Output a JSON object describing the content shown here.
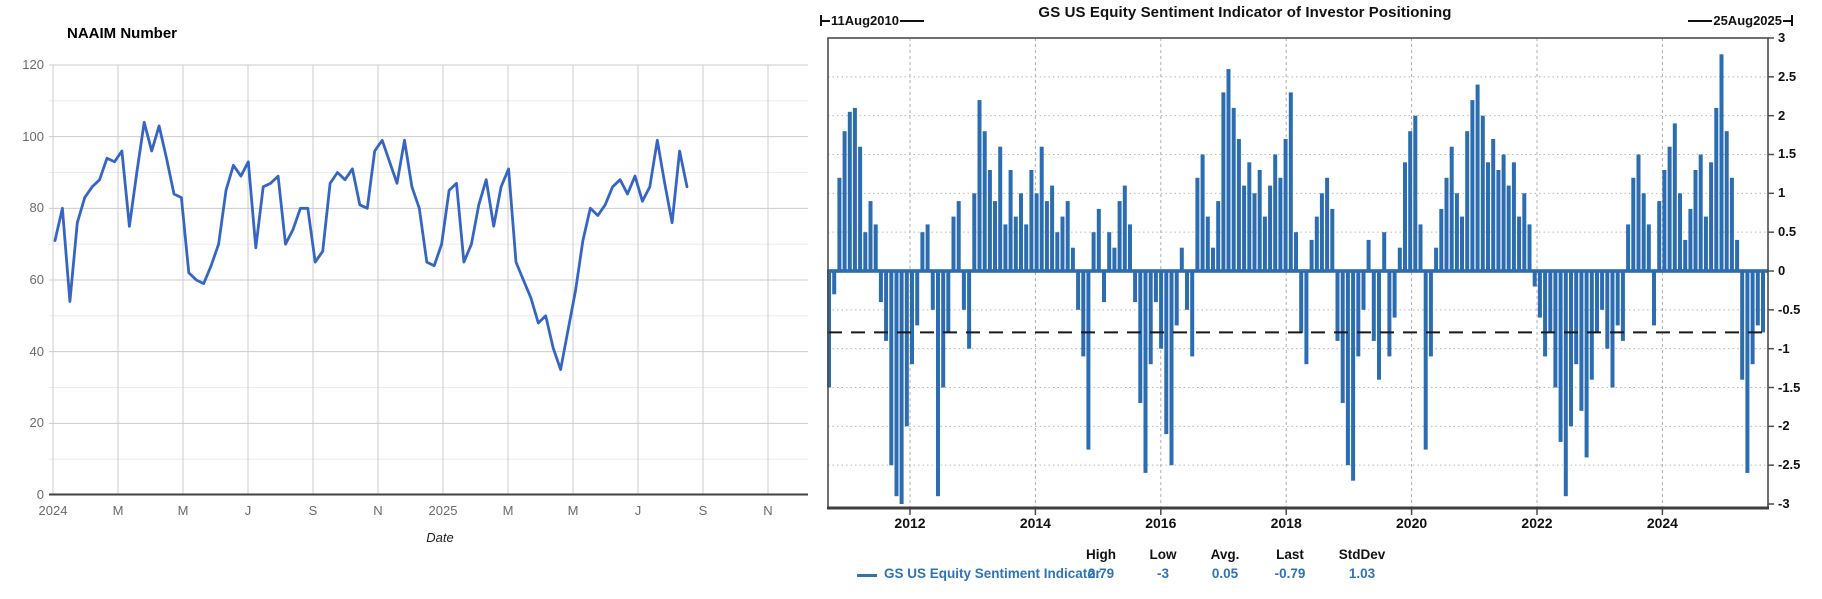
{
  "chart_data": [
    {
      "type": "line",
      "title": "NAAIM Number",
      "xlabel": "Date",
      "x_tick_labels": [
        "2024",
        "M",
        "M",
        "J",
        "S",
        "N",
        "2025",
        "M",
        "M",
        "J",
        "S",
        "N"
      ],
      "y_tick_labels": [
        "0",
        "20",
        "40",
        "60",
        "80",
        "100",
        "120"
      ],
      "ylim": [
        0,
        120
      ],
      "grid": "on",
      "line_color": "#3666c4",
      "x_start": "2024-01 weekly",
      "x_end": "2025-08",
      "values": [
        71,
        80,
        54,
        76,
        83,
        86,
        88,
        94,
        93,
        96,
        75,
        90,
        104,
        96,
        103,
        94,
        84,
        83,
        62,
        60,
        59,
        64,
        70,
        85,
        92,
        89,
        93,
        69,
        86,
        87,
        89,
        70,
        74,
        80,
        80,
        65,
        68,
        87,
        90,
        88,
        91,
        81,
        80,
        96,
        99,
        93,
        87,
        99,
        86,
        80,
        65,
        64,
        70,
        85,
        87,
        65,
        70,
        81,
        88,
        75,
        86,
        91,
        65,
        60,
        55,
        48,
        50,
        41,
        35,
        46,
        57,
        71,
        80,
        78,
        81,
        86,
        88,
        84,
        89,
        82,
        86,
        99,
        87,
        76,
        96,
        86
      ]
    },
    {
      "type": "bar",
      "title": "GS US Equity Sentiment Indicator of Investor Positioning",
      "start_annotation": "11Aug2010",
      "end_annotation": "25Aug2025",
      "x_tick_labels": [
        "2012",
        "2014",
        "2016",
        "2018",
        "2020",
        "2022",
        "2024"
      ],
      "y_tick_labels": [
        "3",
        "2.5",
        "2",
        "1.5",
        "1",
        "0.5",
        "0",
        "-0.5",
        "-1",
        "-1.5",
        "-2",
        "-2.5",
        "-3"
      ],
      "ylim": [
        -3,
        3
      ],
      "grid": "dashed",
      "bar_color": "#2b6db0",
      "dashed_line_value": -0.79,
      "monthly_start": "2010-08",
      "monthly_end": "2025-08",
      "values": [
        -1.5,
        -0.3,
        1.2,
        1.8,
        2.05,
        2.1,
        1.6,
        0.5,
        0.9,
        0.6,
        -0.4,
        -0.9,
        -2.5,
        -2.9,
        -3.0,
        -2.0,
        -1.2,
        -0.7,
        0.5,
        0.6,
        -0.5,
        -2.9,
        -1.5,
        -0.8,
        0.7,
        0.9,
        -0.5,
        -1.0,
        1.0,
        2.2,
        1.8,
        1.3,
        0.9,
        1.6,
        0.6,
        1.3,
        0.7,
        1.0,
        0.6,
        1.3,
        1.0,
        1.6,
        0.9,
        1.1,
        0.5,
        0.7,
        0.9,
        0.3,
        -0.5,
        -1.1,
        -2.3,
        0.5,
        0.8,
        -0.4,
        0.5,
        0.3,
        0.9,
        1.1,
        0.6,
        -0.4,
        -1.7,
        -2.6,
        -1.2,
        -0.4,
        -1.0,
        -2.1,
        -2.5,
        -0.7,
        0.3,
        -0.5,
        -1.1,
        1.2,
        1.5,
        0.7,
        0.3,
        0.9,
        2.3,
        2.6,
        2.1,
        1.7,
        1.1,
        1.4,
        1.0,
        1.3,
        0.7,
        1.1,
        1.5,
        1.2,
        1.7,
        2.3,
        0.5,
        -0.8,
        -1.2,
        0.4,
        0.7,
        1.0,
        1.2,
        0.8,
        -0.9,
        -1.7,
        -2.5,
        -2.7,
        -1.1,
        -0.5,
        0.4,
        -0.9,
        -1.4,
        0.5,
        -1.1,
        -0.6,
        0.3,
        1.4,
        1.8,
        2.0,
        0.6,
        -2.3,
        -1.1,
        0.3,
        0.8,
        1.2,
        1.6,
        1.0,
        0.7,
        1.8,
        2.2,
        2.4,
        2.0,
        1.4,
        1.7,
        1.3,
        1.5,
        1.1,
        1.4,
        0.7,
        1.0,
        0.6,
        -0.2,
        -0.6,
        -1.1,
        -0.8,
        -1.5,
        -2.2,
        -2.9,
        -2.0,
        -1.2,
        -1.8,
        -2.4,
        -1.4,
        -0.8,
        -0.5,
        -1.0,
        -1.5,
        -0.7,
        -0.9,
        0.6,
        1.2,
        1.5,
        1.0,
        0.6,
        -0.7,
        0.9,
        1.3,
        1.6,
        1.9,
        1.0,
        0.4,
        0.8,
        1.3,
        1.5,
        0.7,
        1.4,
        2.1,
        2.79,
        1.8,
        1.2,
        0.4,
        -1.4,
        -2.6,
        -1.2,
        -0.7,
        -0.79
      ],
      "legend": {
        "label": "GS US Equity Sentiment Indicator",
        "stats_headers": [
          "High",
          "Low",
          "Avg.",
          "Last",
          "StdDev"
        ],
        "stats_values": [
          "2.79",
          "-3",
          "0.05",
          "-0.79",
          "1.03"
        ]
      }
    }
  ],
  "colors": {
    "left_line": "#3666c4",
    "left_grid_major": "#cccccc",
    "left_grid_minor": "#ebebeb",
    "left_axis": "#424242",
    "left_tick_text": "#6b6b6b",
    "right_bar": "#2b6db0",
    "right_border": "#4d4d4d",
    "right_grid": "#b8b8b8",
    "right_dashed_line": "#1a1a1a",
    "right_blue_text": "#2e74b5"
  }
}
